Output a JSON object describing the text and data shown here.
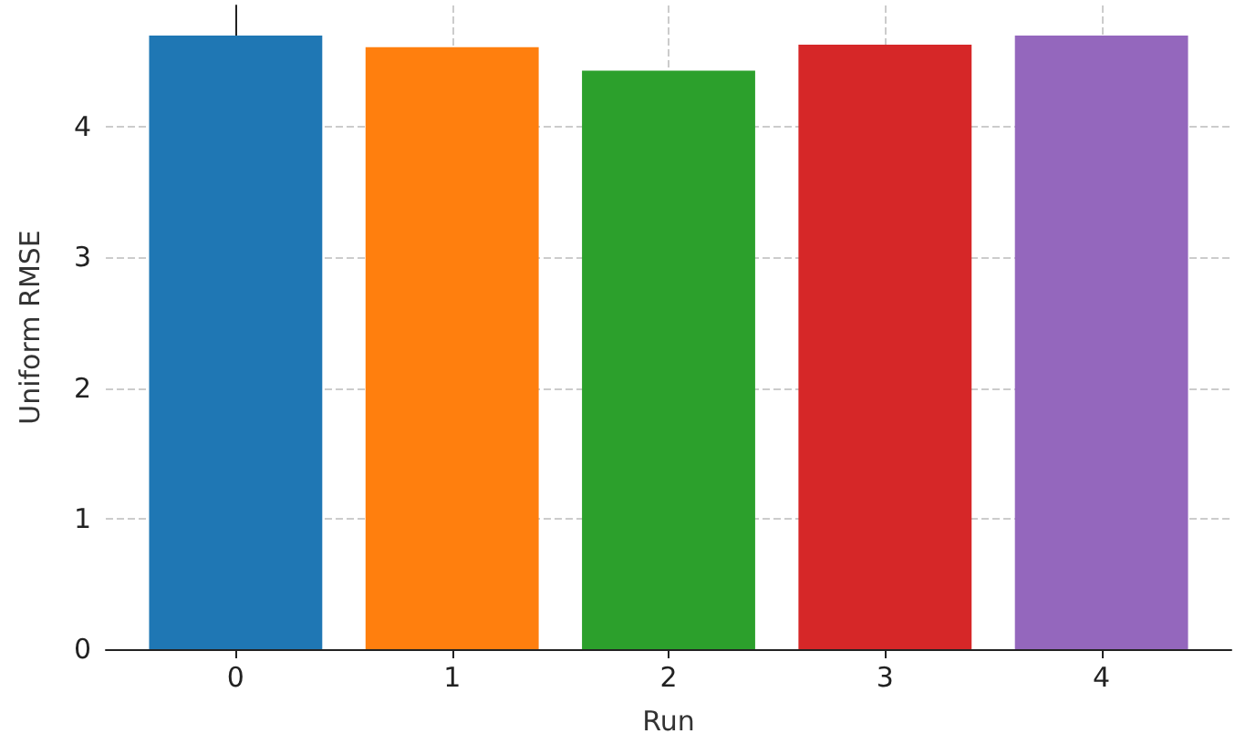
{
  "chart_data": {
    "type": "bar",
    "xlabel": "Run",
    "ylabel": "Uniform RMSE",
    "x": [
      0,
      1,
      2,
      3,
      4
    ],
    "values": [
      4.7,
      4.61,
      4.43,
      4.63,
      4.7
    ],
    "colors": [
      "#1f77b4",
      "#ff7f0e",
      "#2ca02c",
      "#d62728",
      "#9467bd"
    ],
    "xlim": [
      -0.6,
      4.6
    ],
    "xticks": [
      0,
      1,
      2,
      3,
      4
    ],
    "ylim": [
      0,
      4.93
    ],
    "yticks": [
      0,
      1,
      2,
      3,
      4
    ],
    "grid": true
  }
}
